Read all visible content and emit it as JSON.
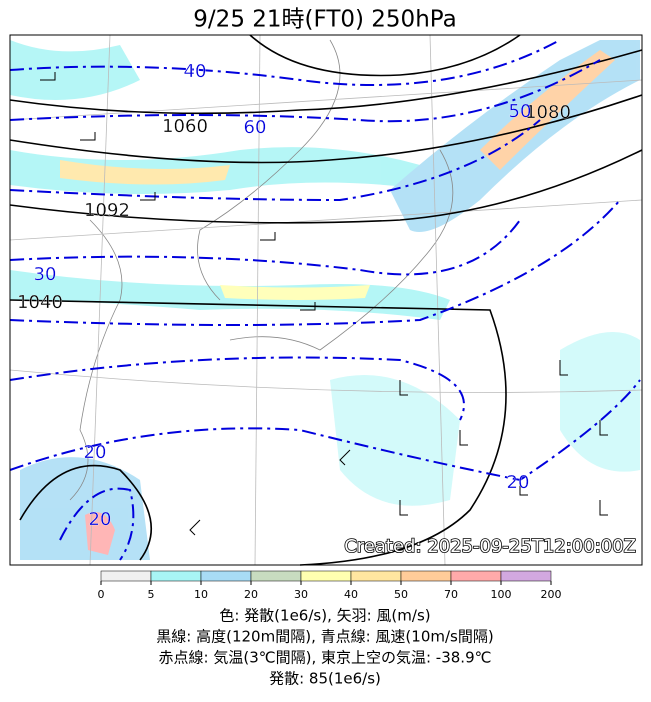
{
  "header": {
    "title": "9/25  21時(FT0)     250hPa"
  },
  "map": {
    "contour_labels": [
      "1060",
      "1080",
      "1092",
      "1040",
      "40",
      "60",
      "50",
      "30",
      "20",
      "20",
      "20"
    ],
    "created": "Created: 2025-09-25T12:00:00Z"
  },
  "colorbar": {
    "ticks": [
      0,
      5,
      10,
      20,
      30,
      40,
      50,
      70,
      100,
      200
    ],
    "colors": [
      "#f0f0f0",
      "#a8f5f5",
      "#a8dcf5",
      "#c8dcc0",
      "#ffffb0",
      "#ffe6a0",
      "#ffcc99",
      "#ffaaaa",
      "#d2a8e0"
    ]
  },
  "caption": [
    "色: 発散(1e6/s),  矢羽: 風(m/s)",
    "黒線: 高度(120m間隔),  青点線: 風速(10m/s間隔)",
    "赤点線: 気温(3℃間隔), 東京上空の気温: -38.9℃",
    "発散: 85(1e6/s)"
  ]
}
